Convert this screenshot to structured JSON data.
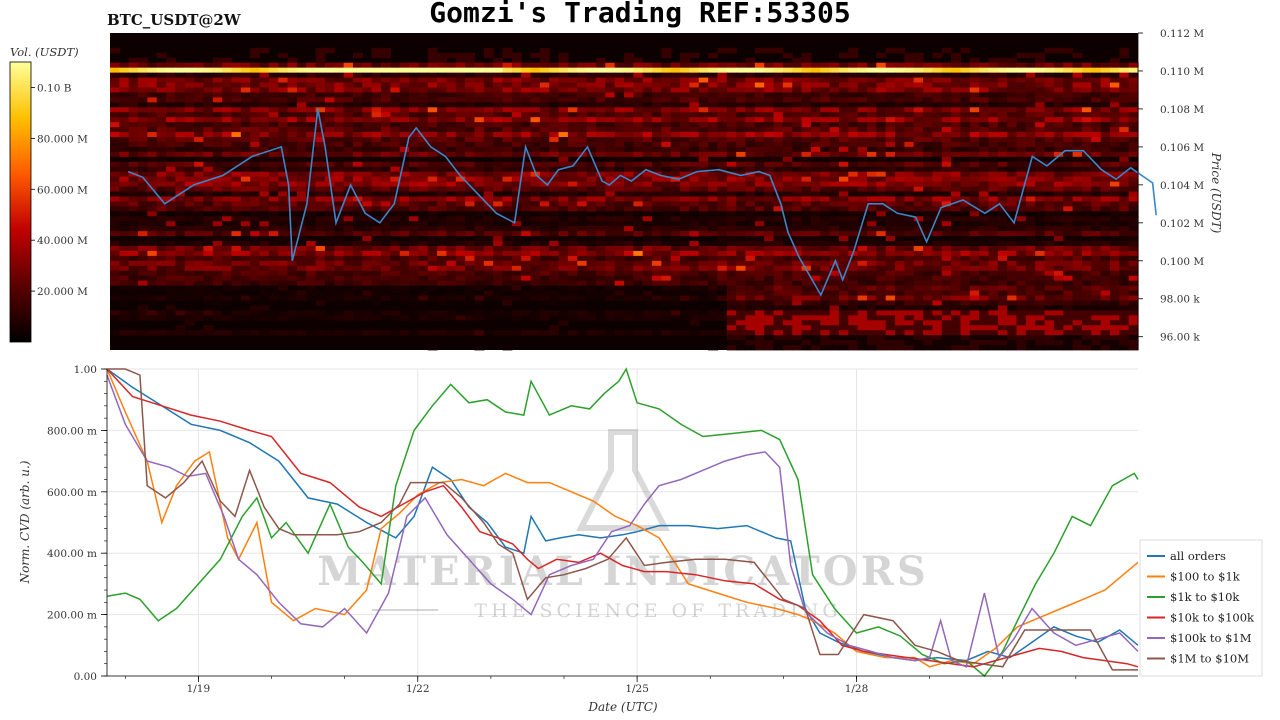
{
  "header": {
    "title": "Gomzi's Trading REF:53305",
    "pair": "BTC_USDT@2W"
  },
  "watermark": {
    "brand": "MATERIAL INDICATORS",
    "tagline": "THE SCIENCE OF TRADING"
  },
  "chart_data": [
    {
      "type": "heatmap",
      "colorbar": {
        "label": "Vol. (USDT)",
        "ticks": [
          "0.10 B",
          "80.000 M",
          "60.000 M",
          "40.000 M",
          "20.000 M"
        ],
        "tick_values": [
          100000000,
          80000000,
          60000000,
          40000000,
          20000000
        ],
        "range": [
          0,
          110000000
        ],
        "colors": [
          "#000000",
          "#5a0000",
          "#c00000",
          "#ff5a00",
          "#ffc000",
          "#ffff9a"
        ]
      },
      "y_axis": {
        "label": "Price (USDT)",
        "ticks": [
          "0.112 M",
          "0.110 M",
          "0.108 M",
          "0.106 M",
          "0.104 M",
          "0.102 M",
          "0.100 M",
          "98.00 k",
          "96.00 k"
        ],
        "tick_values": [
          112000,
          110000,
          108000,
          106000,
          104000,
          102000,
          100000,
          98000,
          96000
        ],
        "range": [
          95300,
          112000
        ]
      },
      "price_series": {
        "name": "",
        "color": "#3a86c8",
        "x_days": [
          18.0,
          18.2,
          18.5,
          18.9,
          19.3,
          19.7,
          20.1,
          20.2,
          20.25,
          20.45,
          20.6,
          20.7,
          20.85,
          21.05,
          21.25,
          21.45,
          21.65,
          21.85,
          21.95,
          22.15,
          22.35,
          22.55,
          22.8,
          23.05,
          23.3,
          23.45,
          23.6,
          23.75,
          23.9,
          24.1,
          24.3,
          24.5,
          24.6,
          24.75,
          24.9,
          25.1,
          25.3,
          25.55,
          25.8,
          26.1,
          26.4,
          26.65,
          26.8,
          26.95,
          27.05,
          27.2,
          27.35,
          27.5,
          27.7,
          27.8,
          27.95,
          28.15,
          28.35,
          28.55,
          28.8,
          28.95,
          29.15,
          29.45,
          29.75,
          29.95,
          30.15,
          30.4,
          30.6,
          30.85,
          31.1,
          31.35,
          31.55,
          31.75,
          32.05,
          32.1
        ],
        "values": [
          104700,
          104400,
          103000,
          104000,
          104500,
          105500,
          106000,
          104000,
          100000,
          103000,
          108000,
          106000,
          102000,
          104000,
          102500,
          102000,
          103000,
          106500,
          107000,
          106000,
          105500,
          104500,
          103500,
          102500,
          102000,
          106000,
          104500,
          104000,
          104800,
          105000,
          106000,
          104200,
          104000,
          104500,
          104200,
          104800,
          104500,
          104300,
          104700,
          104800,
          104500,
          104700,
          104500,
          103000,
          101500,
          100200,
          99200,
          98200,
          100000,
          99000,
          100500,
          103000,
          103000,
          102500,
          102300,
          101000,
          102800,
          103200,
          102500,
          103000,
          102000,
          105500,
          105000,
          105800,
          105800,
          104800,
          104300,
          104900,
          104100,
          102400
        ]
      }
    },
    {
      "type": "line",
      "xlabel": "Date (UTC)",
      "ylabel": "Norm. CVD (arb. u.)",
      "x_ticks": [
        "1/19",
        "1/22",
        "1/25",
        "1/28"
      ],
      "x_tick_values": [
        19,
        22,
        25,
        28
      ],
      "xlim": [
        17.75,
        31.85
      ],
      "ylim": [
        0,
        1
      ],
      "y_ticks": [
        "1.00",
        "800.00 m",
        "600.00 m",
        "400.00 m",
        "200.00 m",
        "0.00"
      ],
      "y_tick_values": [
        1,
        0.8,
        0.6,
        0.4,
        0.2,
        0
      ],
      "legend": "right",
      "grid": true,
      "series": [
        {
          "name": "all orders",
          "color": "#1f77b4",
          "x": [
            17.75,
            18.1,
            18.5,
            18.9,
            19.3,
            19.7,
            20.1,
            20.5,
            20.9,
            21.3,
            21.7,
            21.95,
            22.2,
            22.45,
            22.7,
            22.95,
            23.2,
            23.45,
            23.55,
            23.75,
            23.95,
            24.2,
            24.5,
            24.8,
            25.0,
            25.3,
            25.7,
            26.1,
            26.5,
            26.9,
            27.1,
            27.3,
            27.5,
            27.75,
            28.1,
            28.5,
            28.8,
            29.1,
            29.5,
            29.8,
            30.1,
            30.4,
            30.7,
            31.0,
            31.3,
            31.6,
            31.85
          ],
          "values": [
            1.0,
            0.94,
            0.88,
            0.82,
            0.8,
            0.76,
            0.7,
            0.58,
            0.56,
            0.5,
            0.45,
            0.52,
            0.68,
            0.64,
            0.55,
            0.5,
            0.42,
            0.4,
            0.52,
            0.44,
            0.45,
            0.46,
            0.45,
            0.46,
            0.47,
            0.49,
            0.49,
            0.48,
            0.49,
            0.45,
            0.44,
            0.22,
            0.14,
            0.11,
            0.08,
            0.06,
            0.05,
            0.06,
            0.05,
            0.08,
            0.06,
            0.11,
            0.16,
            0.13,
            0.11,
            0.15,
            0.1
          ]
        },
        {
          "name": "$100 to $1k",
          "color": "#ff7f0e",
          "x": [
            17.75,
            18.0,
            18.3,
            18.5,
            18.7,
            18.95,
            19.15,
            19.4,
            19.55,
            19.8,
            20.0,
            20.3,
            20.6,
            21.0,
            21.3,
            21.5,
            21.75,
            22.0,
            22.3,
            22.6,
            22.9,
            23.2,
            23.5,
            23.8,
            24.1,
            24.4,
            24.7,
            25.0,
            25.3,
            25.7,
            26.1,
            26.5,
            26.9,
            27.2,
            27.4,
            27.7,
            28.0,
            28.4,
            28.8,
            29.0,
            29.3,
            29.6,
            29.9,
            30.2,
            30.5,
            30.8,
            31.1,
            31.4,
            31.7,
            31.85
          ],
          "values": [
            1.0,
            0.86,
            0.7,
            0.5,
            0.62,
            0.7,
            0.73,
            0.45,
            0.38,
            0.5,
            0.24,
            0.18,
            0.22,
            0.2,
            0.28,
            0.48,
            0.53,
            0.59,
            0.63,
            0.64,
            0.62,
            0.66,
            0.63,
            0.63,
            0.6,
            0.57,
            0.52,
            0.49,
            0.45,
            0.3,
            0.27,
            0.24,
            0.22,
            0.2,
            0.18,
            0.14,
            0.08,
            0.06,
            0.06,
            0.03,
            0.05,
            0.04,
            0.09,
            0.16,
            0.19,
            0.22,
            0.25,
            0.28,
            0.34,
            0.37
          ]
        },
        {
          "name": "$1k to $10k",
          "color": "#2ca02c",
          "x": [
            17.75,
            18.0,
            18.2,
            18.45,
            18.7,
            19.0,
            19.3,
            19.6,
            19.8,
            20.0,
            20.2,
            20.5,
            20.8,
            21.05,
            21.25,
            21.5,
            21.7,
            21.95,
            22.2,
            22.45,
            22.7,
            22.95,
            23.2,
            23.45,
            23.55,
            23.8,
            24.1,
            24.35,
            24.55,
            24.75,
            24.85,
            25.0,
            25.3,
            25.6,
            25.9,
            26.3,
            26.7,
            26.95,
            27.2,
            27.4,
            27.7,
            28.0,
            28.3,
            28.6,
            28.9,
            29.2,
            29.5,
            29.75,
            30.0,
            30.2,
            30.45,
            30.7,
            30.95,
            31.2,
            31.5,
            31.8,
            31.85
          ],
          "values": [
            0.26,
            0.27,
            0.25,
            0.18,
            0.22,
            0.3,
            0.38,
            0.52,
            0.58,
            0.45,
            0.5,
            0.4,
            0.56,
            0.42,
            0.37,
            0.3,
            0.62,
            0.8,
            0.88,
            0.95,
            0.89,
            0.9,
            0.86,
            0.85,
            0.96,
            0.85,
            0.88,
            0.87,
            0.92,
            0.96,
            1.0,
            0.89,
            0.87,
            0.82,
            0.78,
            0.79,
            0.8,
            0.77,
            0.64,
            0.33,
            0.22,
            0.14,
            0.16,
            0.13,
            0.07,
            0.04,
            0.05,
            0.0,
            0.08,
            0.18,
            0.3,
            0.4,
            0.52,
            0.49,
            0.62,
            0.66,
            0.64
          ]
        },
        {
          "name": "$10k to $100k",
          "color": "#d62728",
          "x": [
            17.75,
            18.1,
            18.5,
            18.9,
            19.3,
            19.7,
            20.0,
            20.4,
            20.8,
            21.2,
            21.5,
            21.8,
            22.1,
            22.35,
            22.6,
            22.85,
            23.1,
            23.3,
            23.5,
            23.65,
            23.9,
            24.2,
            24.5,
            24.8,
            25.1,
            25.4,
            25.8,
            26.2,
            26.6,
            26.95,
            27.2,
            27.5,
            27.8,
            28.1,
            28.4,
            28.7,
            29.0,
            29.3,
            29.6,
            29.9,
            30.2,
            30.5,
            30.8,
            31.1,
            31.4,
            31.7,
            31.85
          ],
          "values": [
            1.0,
            0.91,
            0.88,
            0.85,
            0.83,
            0.8,
            0.78,
            0.66,
            0.63,
            0.55,
            0.52,
            0.56,
            0.6,
            0.62,
            0.55,
            0.47,
            0.45,
            0.43,
            0.38,
            0.35,
            0.38,
            0.37,
            0.4,
            0.36,
            0.34,
            0.34,
            0.33,
            0.31,
            0.3,
            0.25,
            0.23,
            0.18,
            0.1,
            0.08,
            0.07,
            0.06,
            0.05,
            0.04,
            0.03,
            0.05,
            0.07,
            0.09,
            0.08,
            0.06,
            0.05,
            0.04,
            0.03
          ]
        },
        {
          "name": "$100k to $1M",
          "color": "#9467bd",
          "x": [
            17.75,
            18.0,
            18.3,
            18.6,
            18.85,
            19.1,
            19.35,
            19.55,
            19.8,
            20.1,
            20.4,
            20.7,
            21.0,
            21.3,
            21.6,
            21.85,
            22.1,
            22.4,
            22.7,
            23.0,
            23.3,
            23.55,
            23.8,
            24.1,
            24.4,
            24.65,
            24.9,
            25.1,
            25.3,
            25.6,
            25.9,
            26.2,
            26.5,
            26.75,
            26.95,
            27.1,
            27.3,
            27.6,
            27.9,
            28.2,
            28.5,
            28.8,
            29.0,
            29.15,
            29.3,
            29.5,
            29.75,
            29.95,
            30.15,
            30.4,
            30.7,
            31.0,
            31.3,
            31.6,
            31.85
          ],
          "values": [
            0.98,
            0.82,
            0.7,
            0.68,
            0.65,
            0.66,
            0.52,
            0.38,
            0.33,
            0.24,
            0.17,
            0.16,
            0.22,
            0.14,
            0.27,
            0.52,
            0.58,
            0.46,
            0.38,
            0.3,
            0.25,
            0.2,
            0.33,
            0.36,
            0.38,
            0.47,
            0.49,
            0.56,
            0.62,
            0.64,
            0.67,
            0.7,
            0.72,
            0.73,
            0.68,
            0.36,
            0.21,
            0.14,
            0.1,
            0.08,
            0.06,
            0.05,
            0.06,
            0.18,
            0.05,
            0.03,
            0.27,
            0.06,
            0.12,
            0.22,
            0.14,
            0.1,
            0.12,
            0.14,
            0.08
          ]
        },
        {
          "name": "$1M to $10M",
          "color": "#8c564b",
          "x": [
            17.75,
            18.0,
            18.2,
            18.3,
            18.55,
            18.8,
            19.05,
            19.3,
            19.5,
            19.7,
            19.9,
            20.1,
            20.3,
            20.6,
            20.9,
            21.2,
            21.5,
            21.75,
            21.9,
            22.1,
            22.35,
            22.6,
            22.9,
            23.1,
            23.3,
            23.5,
            23.75,
            24.0,
            24.3,
            24.6,
            24.85,
            25.1,
            25.4,
            25.8,
            26.2,
            26.6,
            27.0,
            27.3,
            27.5,
            27.75,
            28.1,
            28.5,
            28.8,
            29.1,
            29.4,
            29.7,
            30.0,
            30.3,
            30.6,
            30.9,
            31.2,
            31.5,
            31.85
          ],
          "values": [
            1.0,
            1.0,
            0.98,
            0.62,
            0.58,
            0.63,
            0.7,
            0.57,
            0.52,
            0.67,
            0.55,
            0.48,
            0.46,
            0.46,
            0.46,
            0.47,
            0.5,
            0.56,
            0.63,
            0.63,
            0.63,
            0.58,
            0.5,
            0.43,
            0.4,
            0.25,
            0.32,
            0.33,
            0.35,
            0.38,
            0.45,
            0.36,
            0.37,
            0.38,
            0.38,
            0.37,
            0.25,
            0.22,
            0.07,
            0.07,
            0.2,
            0.18,
            0.1,
            0.08,
            0.05,
            0.04,
            0.03,
            0.15,
            0.15,
            0.15,
            0.15,
            0.02,
            0.02
          ]
        }
      ]
    }
  ]
}
